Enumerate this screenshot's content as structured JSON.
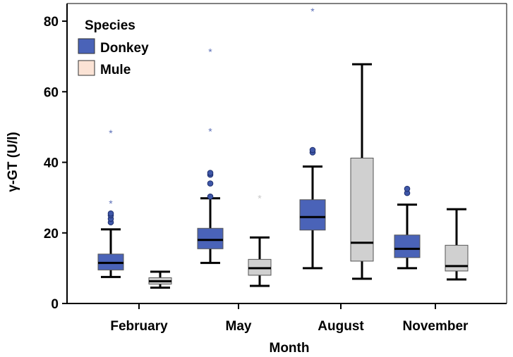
{
  "chart_data": {
    "type": "boxplot",
    "xlabel": "Month",
    "ylabel": "γ-GT (U/l)",
    "ylim": [
      0,
      85
    ],
    "yticks": [
      0,
      20,
      40,
      60,
      80
    ],
    "categories": [
      "February",
      "May",
      "August",
      "November"
    ],
    "legend": {
      "title": "Species",
      "position": "top-left"
    },
    "series": [
      {
        "name": "Donkey",
        "color": "#4a63b8",
        "boxes": [
          {
            "whisker_low": 7.5,
            "q1": 9.5,
            "median": 11.5,
            "q3": 14,
            "whisker_high": 21,
            "outliers": [
              23,
              24,
              25,
              25.5
            ],
            "extremes": [
              28.5,
              48.5
            ]
          },
          {
            "whisker_low": 11.5,
            "q1": 15.5,
            "median": 18,
            "q3": 21.3,
            "whisker_high": 29.8,
            "outliers": [
              30.3,
              34,
              36.5,
              37
            ],
            "extremes": [
              49,
              71.5
            ]
          },
          {
            "whisker_low": 10,
            "q1": 20.8,
            "median": 24.5,
            "q3": 29.4,
            "whisker_high": 38.8,
            "outliers": [
              42.8,
              43.5
            ],
            "extremes": [
              83
            ]
          },
          {
            "whisker_low": 10,
            "q1": 13,
            "median": 15.5,
            "q3": 19.4,
            "whisker_high": 28,
            "outliers": [
              31.3,
              32.5
            ],
            "extremes": []
          }
        ]
      },
      {
        "name": "Mule",
        "color": "#d0d0d0",
        "legend_color": "#fbe3d5",
        "boxes": [
          {
            "whisker_low": 4.5,
            "q1": 5.5,
            "median": 6.3,
            "q3": 7.3,
            "whisker_high": 9,
            "outliers": [],
            "extremes": []
          },
          {
            "whisker_low": 5,
            "q1": 8,
            "median": 10,
            "q3": 12.5,
            "whisker_high": 18.7,
            "outliers": [],
            "extremes": [
              30
            ]
          },
          {
            "whisker_low": 7,
            "q1": 12,
            "median": 17.2,
            "q3": 41.2,
            "whisker_high": 67.8,
            "outliers": [],
            "extremes": []
          },
          {
            "whisker_low": 6.8,
            "q1": 9.2,
            "median": 10.6,
            "q3": 16.5,
            "whisker_high": 26.7,
            "outliers": [],
            "extremes": []
          }
        ]
      }
    ]
  }
}
